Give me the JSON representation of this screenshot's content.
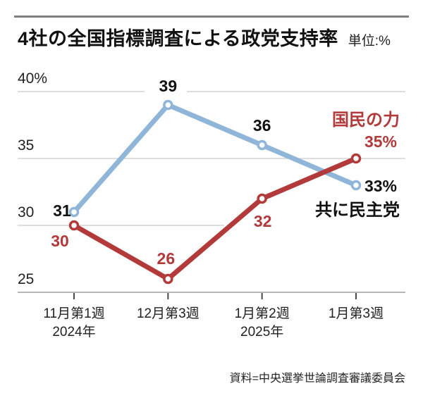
{
  "header": {
    "title": "4社の全国指標調査による政党支持率",
    "unit": "単位:%"
  },
  "source": "資料=中央選挙世論調査審議委員会",
  "colors": {
    "blue": "#8FB6D8",
    "red": "#B23A3A",
    "grid": "#c9c9c9",
    "axis": "#9e9e9e",
    "tick": "#4a4a4a",
    "text": "#111111"
  },
  "chart_data": {
    "type": "line",
    "title": "4社の全国指標調査による政党支持率",
    "unit": "%",
    "categories": [
      [
        "11月第1週",
        "2024年"
      ],
      [
        "12月第3週",
        ""
      ],
      [
        "1月第2週",
        "2025年"
      ],
      [
        "1月第3週",
        ""
      ]
    ],
    "series": [
      {
        "name": "共に民主党",
        "color": "#8FB6D8",
        "label_color": "#111111",
        "values": [
          31,
          39,
          36,
          33
        ],
        "point_labels": [
          "31",
          "39",
          "36",
          "33%"
        ]
      },
      {
        "name": "国民の力",
        "color": "#B23A3A",
        "label_color": "#B23A3A",
        "values": [
          30,
          26,
          32,
          35
        ],
        "point_labels": [
          "30",
          "26",
          "32",
          "35%"
        ]
      }
    ],
    "ylim": [
      25,
      40
    ],
    "yticks": [
      40,
      35,
      30,
      25
    ],
    "ytick_labels": [
      "40%",
      "35",
      "30",
      "25"
    ],
    "grid": true,
    "legend_position": "right-inline",
    "source": "資料=中央選挙世論調査審議委員会"
  }
}
